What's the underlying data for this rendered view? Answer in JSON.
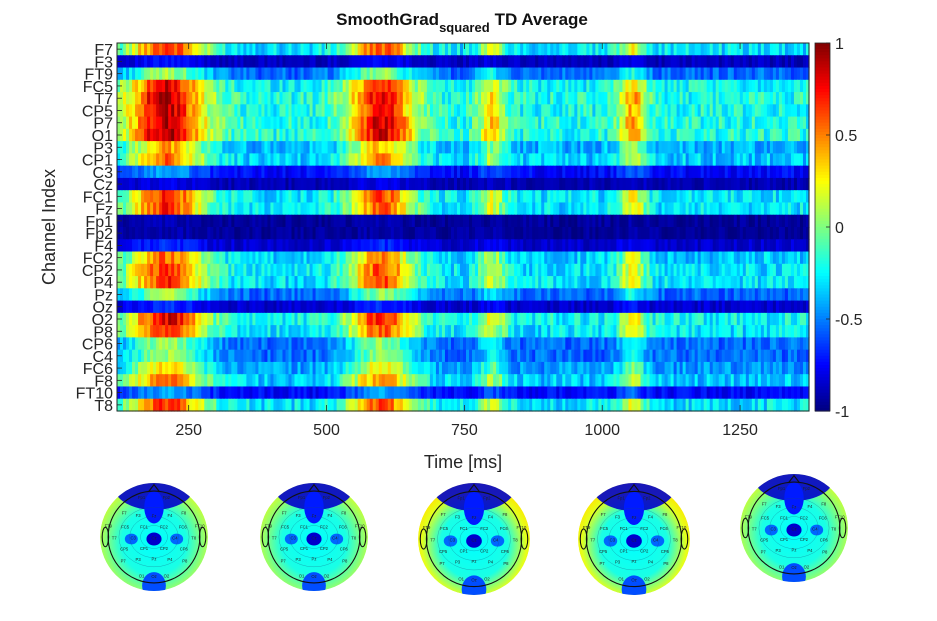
{
  "chart_data": {
    "type": "heatmap",
    "title_main": "SmoothGrad",
    "title_subscript": "squared",
    "title_rest": "TD Average",
    "xlabel": "Time [ms]",
    "ylabel": "Channel Index",
    "xlim": [
      120,
      1375
    ],
    "x_ticks": [
      250,
      500,
      750,
      1000,
      1250
    ],
    "channels": [
      "F7",
      "F3",
      "FT9",
      "FC5",
      "T7",
      "CP5",
      "P7",
      "O1",
      "P3",
      "CP1",
      "C3",
      "Cz",
      "FC1",
      "Fz",
      "Fp1",
      "Fp2",
      "F4",
      "FC2",
      "CP2",
      "P4",
      "Pz",
      "Oz",
      "O2",
      "P8",
      "CP6",
      "C4",
      "FC6",
      "F8",
      "FT10",
      "T8"
    ],
    "channel_base": [
      -0.3,
      -0.88,
      -0.55,
      -0.25,
      -0.2,
      -0.22,
      -0.2,
      -0.2,
      -0.4,
      -0.35,
      -0.75,
      -0.9,
      -0.3,
      -0.3,
      -0.95,
      -0.95,
      -0.85,
      -0.35,
      -0.3,
      -0.3,
      -0.55,
      -0.85,
      -0.25,
      -0.3,
      -0.55,
      -0.55,
      -0.45,
      -0.35,
      -0.75,
      -0.3
    ],
    "activation_windows": [
      {
        "center": 210,
        "width": 70,
        "amplitude": 1.25
      },
      {
        "center": 600,
        "width": 60,
        "amplitude": 1.15
      },
      {
        "center": 800,
        "width": 25,
        "amplitude": 0.6
      },
      {
        "center": 1055,
        "width": 25,
        "amplitude": 0.7
      }
    ],
    "colorbar": {
      "min": -1,
      "max": 1,
      "ticks": [
        1,
        0.5,
        0,
        -0.5,
        -1
      ],
      "colormap": "jet"
    },
    "topomaps": [
      {
        "index": 1,
        "labels": [
          "Fp1",
          "Fp2",
          "F7",
          "F3",
          "Fz",
          "F4",
          "F8",
          "FT9",
          "FC5",
          "FC1",
          "FC2",
          "FC6",
          "FT10",
          "T7",
          "C3",
          "Cz",
          "C4",
          "T8",
          "CP5",
          "CP1",
          "CP2",
          "CP6",
          "P7",
          "P3",
          "Pz",
          "P4",
          "P8",
          "O1",
          "Oz",
          "O2"
        ]
      },
      {
        "index": 2,
        "labels": [
          "Fp1",
          "Fp2",
          "F7",
          "F3",
          "Fz",
          "F4",
          "F8",
          "FT9",
          "FC5",
          "FC1",
          "FC2",
          "FC6",
          "FT10",
          "T7",
          "C3",
          "Cz",
          "C4",
          "T8",
          "CP5",
          "CP1",
          "CP2",
          "CP6",
          "P7",
          "P3",
          "Pz",
          "P4",
          "P8",
          "O1",
          "Oz",
          "O2"
        ]
      },
      {
        "index": 3,
        "labels": [
          "Fp1",
          "Fp2",
          "F7",
          "F3",
          "Fz",
          "F4",
          "F8",
          "FT9",
          "FC5",
          "FC1",
          "FC2",
          "FC6",
          "FT10",
          "T7",
          "C3",
          "Cz",
          "C4",
          "T8",
          "CP5",
          "CP1",
          "CP2",
          "CP6",
          "P7",
          "P3",
          "Pz",
          "P4",
          "P8",
          "O1",
          "Oz",
          "O2"
        ]
      },
      {
        "index": 4,
        "labels": [
          "Fp1",
          "Fp2",
          "F7",
          "F3",
          "Fz",
          "F4",
          "F8",
          "FT9",
          "FC5",
          "FC1",
          "FC2",
          "FC6",
          "FT10",
          "T7",
          "C3",
          "Cz",
          "C4",
          "T8",
          "CP5",
          "CP1",
          "CP2",
          "CP6",
          "P7",
          "P3",
          "Pz",
          "P4",
          "P8",
          "O1",
          "Oz",
          "O2"
        ]
      },
      {
        "index": 5,
        "labels": [
          "Fp1",
          "Fp2",
          "F7",
          "F3",
          "Fz",
          "F4",
          "F8",
          "FT9",
          "FC5",
          "FC1",
          "FC2",
          "FC6",
          "FT10",
          "T7",
          "C3",
          "Cz",
          "C4",
          "T8",
          "CP5",
          "CP1",
          "CP2",
          "CP6",
          "P7",
          "P3",
          "Pz",
          "P4",
          "P8",
          "O1",
          "Oz",
          "O2"
        ]
      }
    ]
  }
}
